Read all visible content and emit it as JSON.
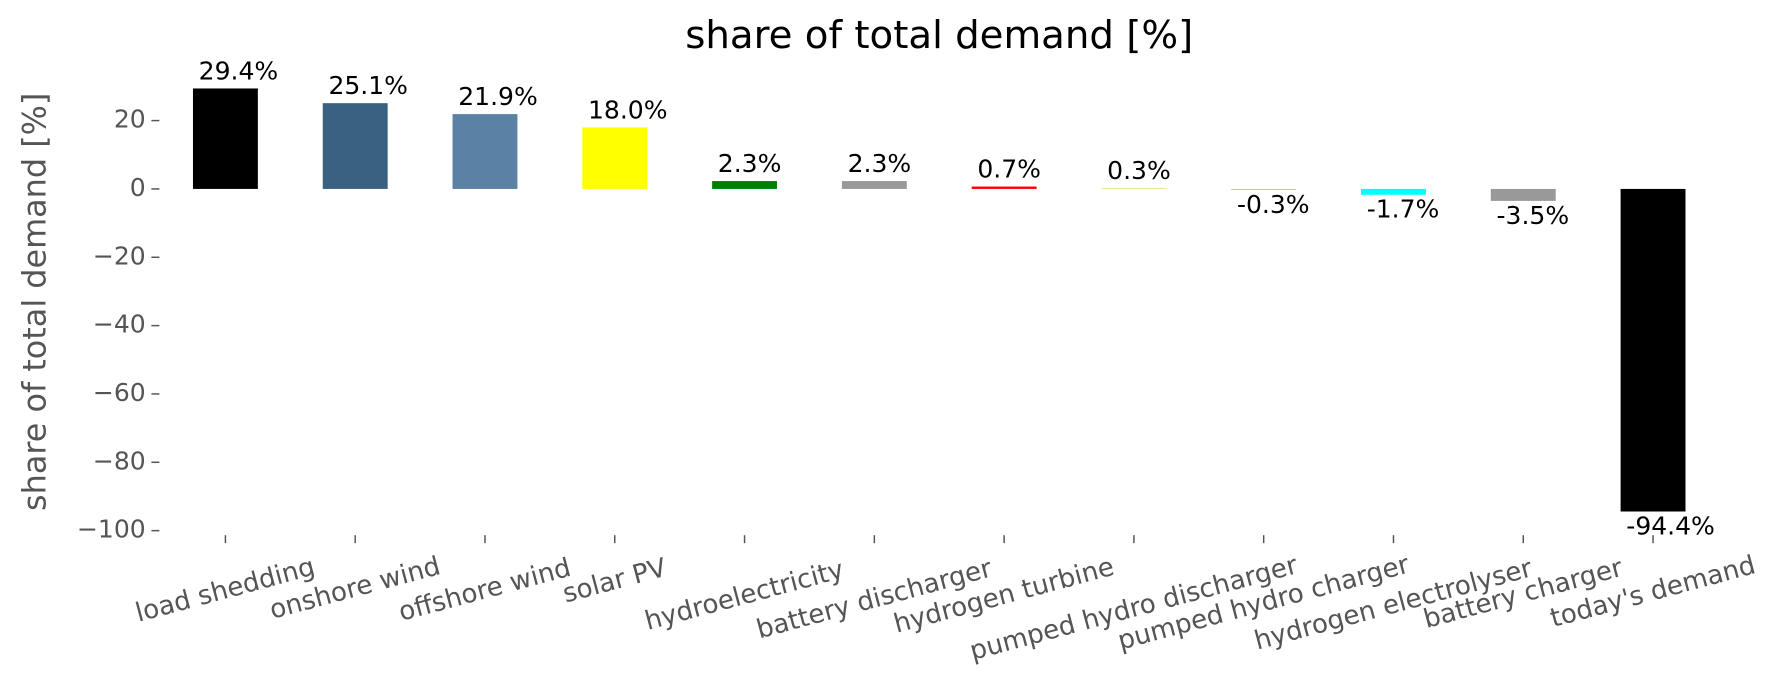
{
  "chart_data": {
    "type": "bar",
    "title": "share of total demand [%]",
    "y_label": "share of total demand [%]",
    "categories": [
      "load shedding",
      "onshore wind",
      "offshore wind",
      "solar PV",
      "hydroelectricity",
      "battery discharger",
      "hydrogen turbine",
      "pumped hydro discharger",
      "pumped hydro charger",
      "hydrogen electrolyser",
      "battery charger",
      "today's demand"
    ],
    "values": [
      29.4,
      25.1,
      21.9,
      18.0,
      2.3,
      2.3,
      0.7,
      0.3,
      -0.3,
      -1.7,
      -3.5,
      -94.4
    ],
    "value_labels": [
      "29.4%",
      "25.1%",
      "21.9%",
      "18.0%",
      "2.3%",
      "2.3%",
      "0.7%",
      "0.3%",
      "-0.3%",
      "-1.7%",
      "-3.5%",
      "-94.4%"
    ],
    "colors": [
      "#000000",
      "#3b6182",
      "#5b82a5",
      "#ffff00",
      "#008000",
      "#999999",
      "#ff0000",
      "#f0e68c",
      "#c8c8a0",
      "#00ffff",
      "#999999",
      "#000000"
    ],
    "ylim": [
      -100.6,
      35.6
    ],
    "yticks": [
      {
        "value": -100,
        "label": "−100"
      },
      {
        "value": -80,
        "label": "−80"
      },
      {
        "value": -60,
        "label": "−60"
      },
      {
        "value": -40,
        "label": "−40"
      },
      {
        "value": -20,
        "label": "−20"
      },
      0,
      20
    ],
    "grid": false
  }
}
